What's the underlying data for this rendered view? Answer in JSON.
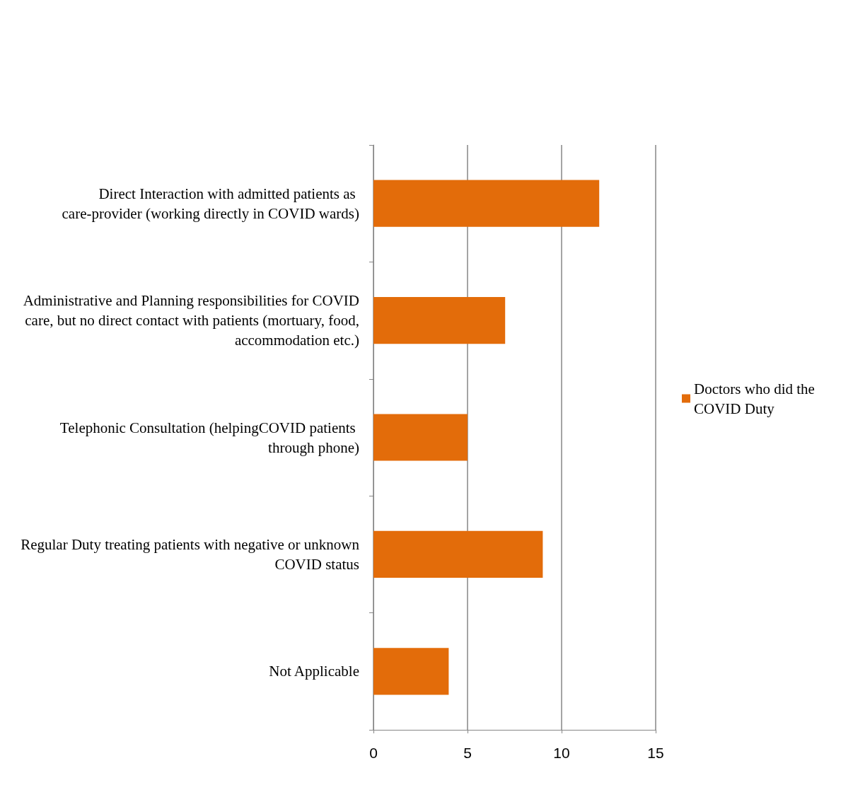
{
  "chart_data": {
    "type": "bar",
    "orientation": "horizontal",
    "categories": [
      "Direct Interaction with admitted patients as care-provider (working directly in COVID wards)",
      "Administrative and Planning responsibilities for COVID care, but no direct contact with patients (mortuary, food, accommodation etc.)",
      "Telephonic Consultation (helpingCOVID patients through phone)",
      "Regular Duty treating patients with negative or unknown COVID status",
      "Not Applicable"
    ],
    "series": [
      {
        "name": "Doctors who did the COVID Duty",
        "color": "#e36c0a",
        "values": [
          12,
          7,
          5,
          9,
          4
        ]
      }
    ],
    "xlim": [
      0,
      15
    ],
    "xticks": [
      0,
      5,
      10,
      15
    ],
    "grid": "x",
    "legend": "right"
  }
}
